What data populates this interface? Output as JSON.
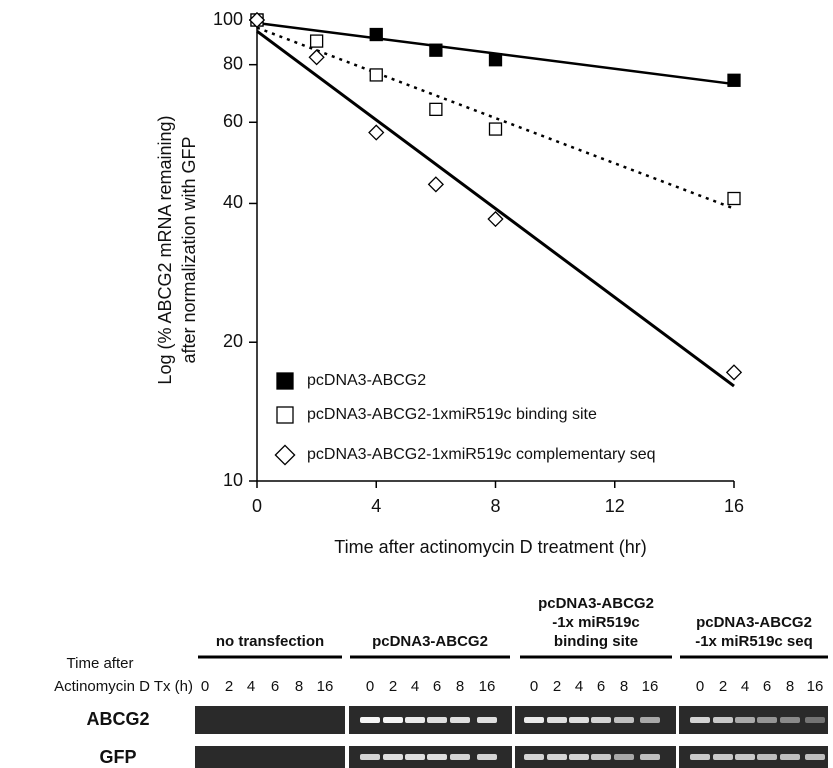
{
  "chart_data": {
    "type": "scatter",
    "y_label": [
      "Log (% ABCG2 mRNA remaining)",
      "after normalization with GFP"
    ],
    "x_label": "Time after actinomycin D treatment (hr)",
    "xlim": [
      0,
      16
    ],
    "xticks": [
      0,
      4,
      8,
      12,
      16
    ],
    "ylim": [
      10,
      100
    ],
    "yticks": [
      10,
      20,
      40,
      60,
      80,
      100
    ],
    "log_y": true,
    "trendline": true,
    "series": [
      {
        "name": "pcDNA3-ABCG2",
        "color": "#000000",
        "marker": "square",
        "filled": true,
        "line_style": "solid",
        "x": [
          0,
          4,
          6,
          8,
          16
        ],
        "values": [
          100,
          93,
          86,
          82,
          74
        ]
      },
      {
        "name": "pcDNA3-ABCG2-1xmiR519c binding site",
        "color": "#000000",
        "marker": "square",
        "filled": false,
        "line_style": "dashed",
        "x": [
          0,
          2,
          4,
          6,
          8,
          16
        ],
        "values": [
          100,
          90,
          76,
          64,
          58,
          41
        ]
      },
      {
        "name": "pcDNA3-ABCG2-1xmiR519c complementary seq",
        "color": "#000000",
        "marker": "diamond",
        "filled": false,
        "line_style": "solid",
        "x": [
          0,
          2,
          4,
          6,
          8,
          16
        ],
        "values": [
          100,
          83,
          57,
          44,
          37,
          17.2
        ]
      }
    ]
  },
  "gel": {
    "header": [
      "Time after",
      "Actinomycin D Tx (h)"
    ],
    "groups": [
      {
        "title": [
          "no transfection"
        ],
        "times": [
          "0",
          "2",
          "4",
          "6",
          "8",
          "16"
        ]
      },
      {
        "title": [
          "pcDNA3-ABCG2"
        ],
        "times": [
          "0",
          "2",
          "4",
          "6",
          "8",
          "16"
        ]
      },
      {
        "title": [
          "pcDNA3-ABCG2",
          "-1x miR519c",
          "binding site"
        ],
        "times": [
          "0",
          "2",
          "4",
          "6",
          "8",
          "16"
        ]
      },
      {
        "title": [
          "pcDNA3-ABCG2",
          "-1x miR519c seq"
        ],
        "times": [
          "0",
          "2",
          "4",
          "6",
          "8",
          "16"
        ]
      }
    ],
    "rows": [
      "ABCG2",
      "GFP"
    ]
  }
}
